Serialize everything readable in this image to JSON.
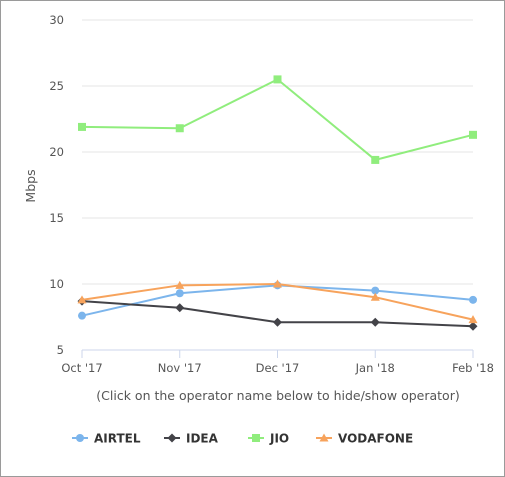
{
  "chart_data": {
    "type": "line",
    "categories": [
      "Oct '17",
      "Nov '17",
      "Dec '17",
      "Jan '18",
      "Feb '18"
    ],
    "ylabel": "Mbps",
    "ylim": [
      5,
      30
    ],
    "yticks": [
      5,
      10,
      15,
      20,
      25,
      30
    ],
    "grid": "horizontal",
    "legend_position": "bottom",
    "note": "(Click on the operator name below to hide/show operator)",
    "series": [
      {
        "name": "AIRTEL",
        "color": "#7cb5ec",
        "marker": "circle",
        "values": [
          7.6,
          9.3,
          9.9,
          9.5,
          8.8
        ]
      },
      {
        "name": "IDEA",
        "color": "#434348",
        "marker": "diamond",
        "values": [
          8.7,
          8.2,
          7.1,
          7.1,
          6.8
        ]
      },
      {
        "name": "JIO",
        "color": "#90ed7d",
        "marker": "square",
        "values": [
          21.9,
          21.8,
          25.5,
          19.4,
          21.3
        ]
      },
      {
        "name": "VODAFONE",
        "color": "#f7a35c",
        "marker": "triangle",
        "values": [
          8.8,
          9.9,
          10.0,
          9.0,
          7.3
        ]
      }
    ]
  }
}
